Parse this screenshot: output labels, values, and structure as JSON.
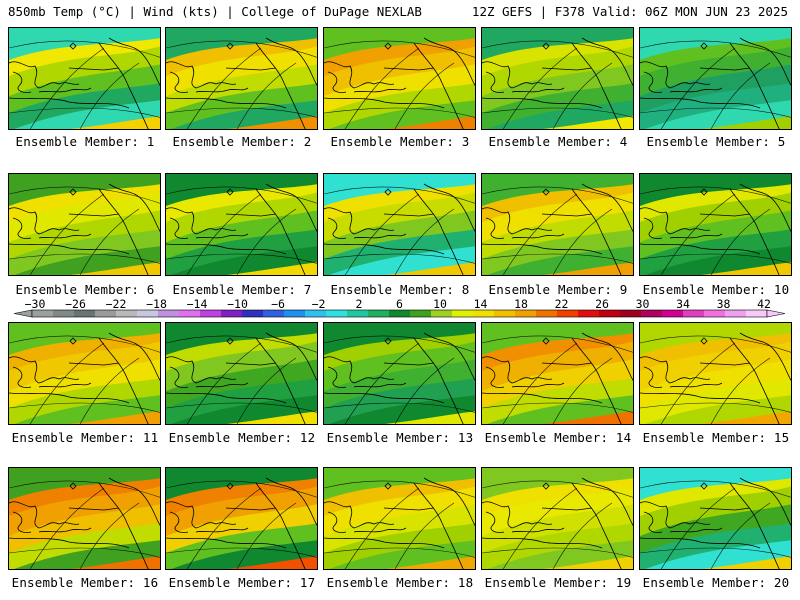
{
  "header": {
    "left": "850mb Temp (°C) | Wind (kts) | College of DuPage NEXLAB",
    "right": "12Z GEFS | F378 Valid: 06Z MON JUN 23 2025"
  },
  "colorbar": {
    "tick_labels": [
      "−30",
      "−26",
      "−22",
      "−18",
      "−14",
      "−10",
      "−6",
      "−2",
      "2",
      "6",
      "10",
      "14",
      "18",
      "22",
      "26",
      "30",
      "34",
      "38",
      "42"
    ],
    "colors": [
      "#9aa0a0",
      "#808888",
      "#6a7474",
      "#9a9a9a",
      "#b8b8b8",
      "#c8c8dc",
      "#c090e0",
      "#e070f0",
      "#c040e0",
      "#8020c0",
      "#3030c0",
      "#3060e0",
      "#2090f0",
      "#30c0f0",
      "#30e0e0",
      "#20c8a0",
      "#20b060",
      "#108830",
      "#40a020",
      "#a0d020",
      "#e0f000",
      "#f0e000",
      "#f0c000",
      "#f0a000",
      "#f07000",
      "#f04000",
      "#e01010",
      "#c00010",
      "#a00020",
      "#b00060",
      "#d00090",
      "#e040c0",
      "#f070e0",
      "#f0a0f0",
      "#f8c8f8"
    ]
  },
  "members": [
    {
      "label": "Ensemble Member: 1",
      "palette": [
        "#30d8b0",
        "#20a860",
        "#60c020",
        "#b0d800",
        "#f0e800",
        "#f4d000"
      ],
      "level": 0.72
    },
    {
      "label": "Ensemble Member: 2",
      "palette": [
        "#20a860",
        "#60c020",
        "#c0dc00",
        "#f0e000",
        "#f0c000",
        "#f09000"
      ],
      "level": 0.82
    },
    {
      "label": "Ensemble Member: 3",
      "palette": [
        "#60c020",
        "#b0d800",
        "#f0e000",
        "#f0c000",
        "#f0a000",
        "#f08000"
      ],
      "level": 0.9
    },
    {
      "label": "Ensemble Member: 4",
      "palette": [
        "#20a860",
        "#40b030",
        "#80c820",
        "#b0d800",
        "#d8e400",
        "#f0e800"
      ],
      "level": 0.6
    },
    {
      "label": "Ensemble Member: 5",
      "palette": [
        "#30d8b0",
        "#20b080",
        "#20a060",
        "#40b030",
        "#60c020",
        "#a0d000"
      ],
      "level": 0.4
    },
    {
      "label": "Ensemble Member: 6",
      "palette": [
        "#40a020",
        "#80c820",
        "#b0d800",
        "#e0e800",
        "#f0e000",
        "#f0c800"
      ],
      "level": 0.62
    },
    {
      "label": "Ensemble Member: 7",
      "palette": [
        "#108830",
        "#20a040",
        "#60c020",
        "#b0d800",
        "#e8e800",
        "#f0d800"
      ],
      "level": 0.55
    },
    {
      "label": "Ensemble Member: 8",
      "palette": [
        "#30e0d0",
        "#20b070",
        "#80c820",
        "#c8dc00",
        "#f0e000",
        "#f0c800"
      ],
      "level": 0.7
    },
    {
      "label": "Ensemble Member: 9",
      "palette": [
        "#40b030",
        "#80c820",
        "#c0dc00",
        "#f0e000",
        "#f0c000",
        "#f0a000"
      ],
      "level": 0.78
    },
    {
      "label": "Ensemble Member: 10",
      "palette": [
        "#108830",
        "#20a040",
        "#60c020",
        "#a0d000",
        "#e0e800",
        "#f0c800"
      ],
      "level": 0.58
    },
    {
      "label": "Ensemble Member: 11",
      "palette": [
        "#60c020",
        "#b0d800",
        "#f0e000",
        "#f0c800",
        "#f0b000",
        "#f0a000"
      ],
      "level": 0.85
    },
    {
      "label": "Ensemble Member: 12",
      "palette": [
        "#108830",
        "#20a040",
        "#40a820",
        "#80c820",
        "#c0dc00",
        "#f0e000"
      ],
      "level": 0.45
    },
    {
      "label": "Ensemble Member: 13",
      "palette": [
        "#108830",
        "#20a050",
        "#40b030",
        "#60c020",
        "#a0d000",
        "#e0e800"
      ],
      "level": 0.35
    },
    {
      "label": "Ensemble Member: 14",
      "palette": [
        "#60c020",
        "#c0dc00",
        "#f0d000",
        "#f0b000",
        "#f09000",
        "#f07000"
      ],
      "level": 0.95
    },
    {
      "label": "Ensemble Member: 15",
      "palette": [
        "#b0d800",
        "#e0e800",
        "#f0e000",
        "#f0d000",
        "#f0c000",
        "#f0a800"
      ],
      "level": 0.8
    },
    {
      "label": "Ensemble Member: 16",
      "palette": [
        "#40a020",
        "#c0dc00",
        "#f0c000",
        "#f0a000",
        "#f08000",
        "#f07000"
      ],
      "level": 0.95
    },
    {
      "label": "Ensemble Member: 17",
      "palette": [
        "#108830",
        "#60c020",
        "#f0d000",
        "#f0a000",
        "#f08000",
        "#f05000"
      ],
      "level": 0.92
    },
    {
      "label": "Ensemble Member: 18",
      "palette": [
        "#60c020",
        "#a0d000",
        "#d8e400",
        "#f0e000",
        "#f0c000",
        "#f0a800"
      ],
      "level": 0.75
    },
    {
      "label": "Ensemble Member: 19",
      "palette": [
        "#80c820",
        "#b0d800",
        "#d0e000",
        "#e8e800",
        "#f0e000",
        "#f0d000"
      ],
      "level": 0.68
    },
    {
      "label": "Ensemble Member: 20",
      "palette": [
        "#30e0d0",
        "#20b070",
        "#40a820",
        "#a0d000",
        "#e0e800",
        "#f0d000"
      ],
      "level": 0.62
    }
  ]
}
